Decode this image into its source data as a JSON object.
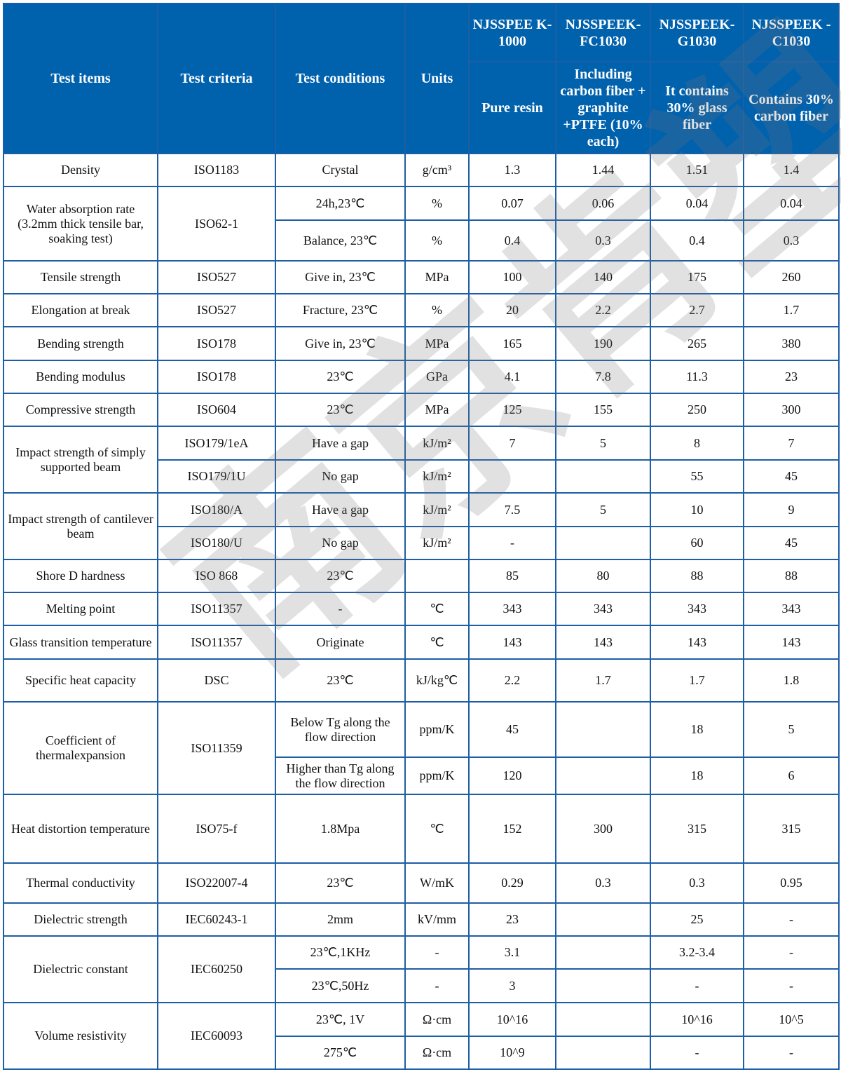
{
  "header": {
    "test_items": "Test items",
    "test_criteria": "Test criteria",
    "test_conditions": "Test conditions",
    "units": "Units",
    "products": [
      {
        "name": "NJSSPEEK-1000",
        "name_display": "NJSSPEE K-1000",
        "description": "Pure resin"
      },
      {
        "name": "NJSSPEEK-FC1030",
        "name_display": "NJSSPEEK- FC1030",
        "description": "Including carbon fiber + graphite +PTFE (10% each)"
      },
      {
        "name": "NJSSPEEK-G1030",
        "name_display": "NJSSPEEK- G1030",
        "description": "It contains 30% glass fiber"
      },
      {
        "name": "NJSSPEEK-C1030",
        "name_display": "NJSSPEEK -C1030",
        "description": "Contains 30% carbon fiber"
      }
    ]
  },
  "colors": {
    "header_bg": "#0061ad",
    "border": "#1d5ea6",
    "header_text": "#ffffff"
  },
  "watermark": "南京肯塑",
  "groups": [
    {
      "item": "Density",
      "criteria": "ISO1183",
      "rows": [
        {
          "conditions": "Crystal",
          "units": "g/cm³",
          "values": [
            "1.3",
            "1.44",
            "1.51",
            "1.4"
          ]
        }
      ]
    },
    {
      "item": "Water absorption rate (3.2mm thick tensile bar, soaking test)",
      "criteria": "ISO62-1",
      "rows": [
        {
          "conditions": "24h,23℃",
          "units": "%",
          "values": [
            "0.07",
            "0.06",
            "0.04",
            "0.04"
          ]
        },
        {
          "conditions": "Balance, 23℃",
          "units": "%",
          "values": [
            "0.4",
            "0.3",
            "0.4",
            "0.3"
          ]
        }
      ]
    },
    {
      "item": "Tensile strength",
      "criteria": "ISO527",
      "rows": [
        {
          "conditions": "Give in, 23℃",
          "units": "MPa",
          "values": [
            "100",
            "140",
            "175",
            "260"
          ]
        }
      ]
    },
    {
      "item": "Elongation at break",
      "criteria": "ISO527",
      "rows": [
        {
          "conditions": "Fracture, 23℃",
          "units": "%",
          "values": [
            "20",
            "2.2",
            "2.7",
            "1.7"
          ]
        }
      ]
    },
    {
      "item": "Bending strength",
      "criteria": "ISO178",
      "rows": [
        {
          "conditions": "Give in, 23℃",
          "units": "MPa",
          "values": [
            "165",
            "190",
            "265",
            "380"
          ]
        }
      ]
    },
    {
      "item": "Bending modulus",
      "criteria": "ISO178",
      "rows": [
        {
          "conditions": "23℃",
          "units": "GPa",
          "values": [
            "4.1",
            "7.8",
            "11.3",
            "23"
          ]
        }
      ]
    },
    {
      "item": "Compressive strength",
      "criteria": "ISO604",
      "rows": [
        {
          "conditions": "23℃",
          "units": "MPa",
          "values": [
            "125",
            "155",
            "250",
            "300"
          ]
        }
      ]
    },
    {
      "item": "Impact strength of simply supported beam",
      "rows": [
        {
          "criteria": "ISO179/1eA",
          "conditions": "Have a gap",
          "units": "kJ/m²",
          "values": [
            "7",
            "5",
            "8",
            "7"
          ]
        },
        {
          "criteria": "ISO179/1U",
          "conditions": "No gap",
          "units": "kJ/m²",
          "values": [
            "",
            "",
            "55",
            "45"
          ]
        }
      ]
    },
    {
      "item": "Impact strength of cantilever beam",
      "rows": [
        {
          "criteria": "ISO180/A",
          "conditions": "Have a gap",
          "units": "kJ/m²",
          "values": [
            "7.5",
            "5",
            "10",
            "9"
          ]
        },
        {
          "criteria": "ISO180/U",
          "conditions": "No gap",
          "units": "kJ/m²",
          "values": [
            "-",
            "",
            "60",
            "45"
          ]
        }
      ]
    },
    {
      "item": "Shore D hardness",
      "criteria": "ISO 868",
      "rows": [
        {
          "conditions": "23℃",
          "units": "",
          "values": [
            "85",
            "80",
            "88",
            "88"
          ]
        }
      ]
    },
    {
      "item": "Melting point",
      "criteria": "ISO11357",
      "rows": [
        {
          "conditions": "-",
          "units": "℃",
          "values": [
            "343",
            "343",
            "343",
            "343"
          ]
        }
      ]
    },
    {
      "item": "Glass transition temperature",
      "criteria": "ISO11357",
      "rows": [
        {
          "conditions": "Originate",
          "units": "℃",
          "values": [
            "143",
            "143",
            "143",
            "143"
          ]
        }
      ]
    },
    {
      "item": "Specific heat capacity",
      "criteria": "DSC",
      "rows": [
        {
          "conditions": "23℃",
          "units": "kJ/kg℃",
          "values": [
            "2.2",
            "1.7",
            "1.7",
            "1.8"
          ]
        }
      ]
    },
    {
      "item": "Coefficient of thermalexpansion",
      "criteria": "ISO11359",
      "rows": [
        {
          "conditions": "Below Tg along the flow direction",
          "units": "ppm/K",
          "values": [
            "45",
            "",
            "18",
            "5"
          ]
        },
        {
          "conditions": "Higher than Tg along the flow direction",
          "units": "ppm/K",
          "values": [
            "120",
            "",
            "18",
            "6"
          ]
        }
      ]
    },
    {
      "item": "Heat distortion temperature",
      "criteria": "ISO75-f",
      "rows": [
        {
          "conditions": "1.8Mpa",
          "units": "℃",
          "values": [
            "152",
            "300",
            "315",
            "315"
          ]
        }
      ]
    },
    {
      "item": "Thermal conductivity",
      "criteria": "ISO22007-4",
      "rows": [
        {
          "conditions": "23℃",
          "units": "W/mK",
          "values": [
            "0.29",
            "0.3",
            "0.3",
            "0.95"
          ]
        }
      ]
    },
    {
      "item": "Dielectric strength",
      "criteria": "IEC60243-1",
      "rows": [
        {
          "conditions": "2mm",
          "units": "kV/mm",
          "values": [
            "23",
            "",
            "25",
            "-"
          ]
        }
      ]
    },
    {
      "item": "Dielectric constant",
      "criteria": "IEC60250",
      "rows": [
        {
          "conditions": "23℃,1KHz",
          "units": "-",
          "values": [
            "3.1",
            "",
            "3.2-3.4",
            "-"
          ]
        },
        {
          "conditions": "23℃,50Hz",
          "units": "-",
          "values": [
            "3",
            "",
            "-",
            "-"
          ]
        }
      ]
    },
    {
      "item": "Volume resistivity",
      "criteria": "IEC60093",
      "rows": [
        {
          "conditions": "23℃, 1V",
          "units": "Ω·cm",
          "values": [
            "10^16",
            "",
            "10^16",
            "10^5"
          ]
        },
        {
          "conditions": "275℃",
          "units": "Ω·cm",
          "values": [
            "10^9",
            "",
            "-",
            "-"
          ]
        }
      ]
    }
  ]
}
